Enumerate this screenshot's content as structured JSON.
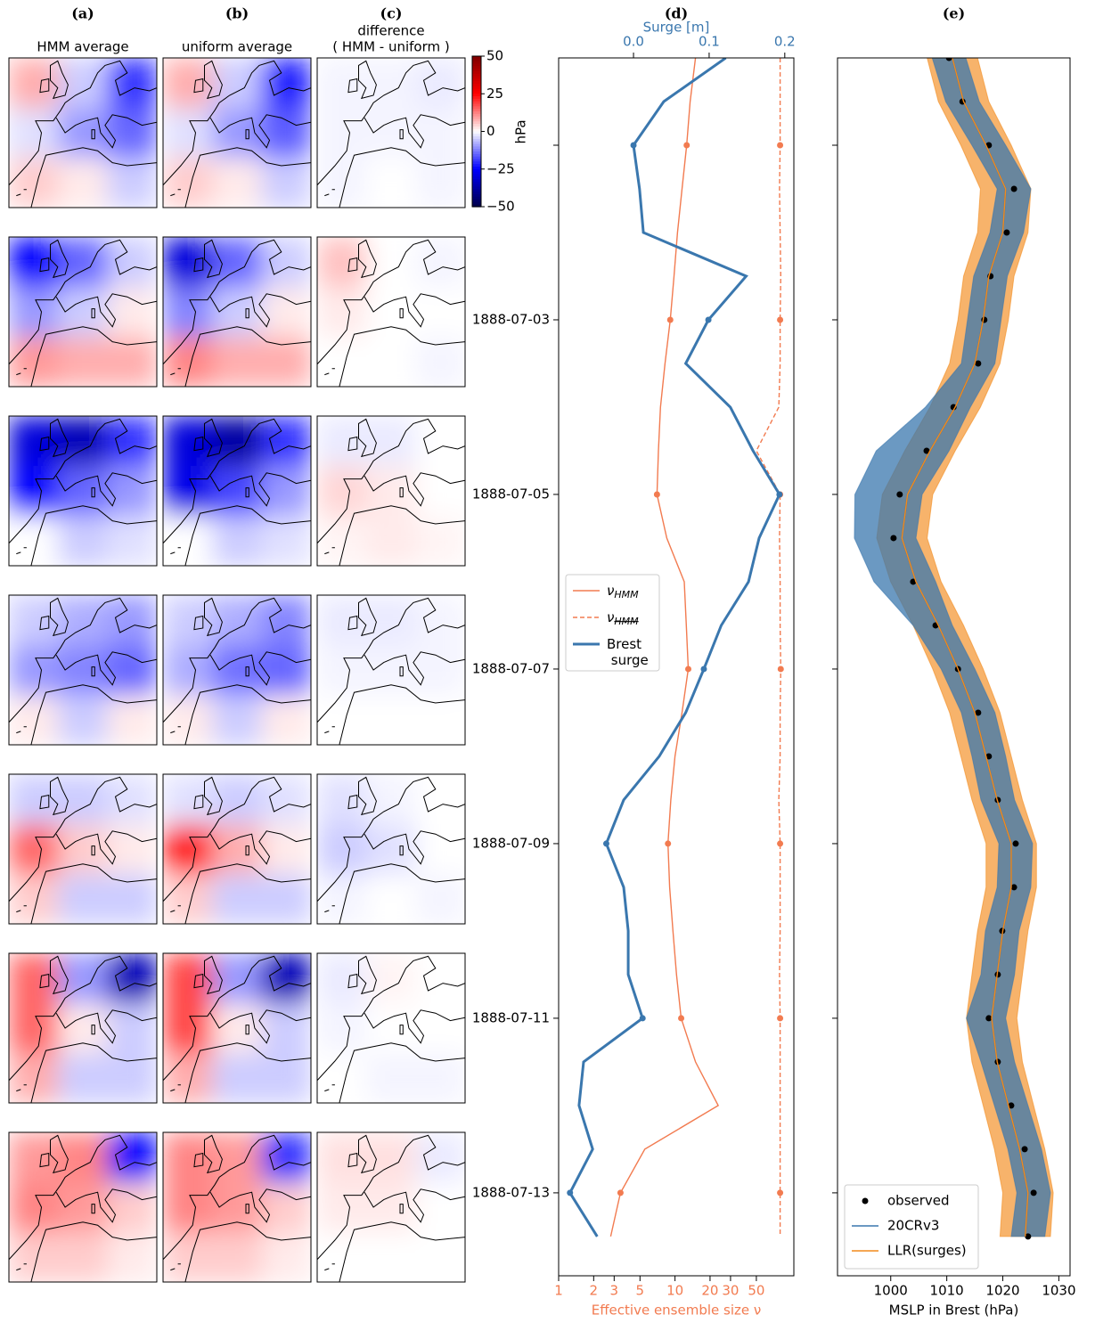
{
  "chart_data": [
    {
      "type": "map-grid",
      "panel_labels": [
        "(a)",
        "(b)",
        "(c)"
      ],
      "column_titles": [
        [
          "HMM average"
        ],
        [
          "uniform average"
        ],
        [
          "difference",
          "( HMM - uniform )"
        ]
      ],
      "colorbar": {
        "label": "hPa",
        "lim": [
          -50,
          50
        ],
        "ticks": [
          50,
          25,
          0,
          {
            "value": -25,
            "label": "−25"
          },
          {
            "value": -50,
            "label": "−50"
          }
        ]
      },
      "grids": [
        [
          [
            [
              8,
              -5,
              -20
            ],
            [
              -3,
              -10,
              -15
            ],
            [
              5,
              2,
              -5
            ]
          ],
          [
            [
              8,
              -5,
              -22
            ],
            [
              -3,
              -10,
              -16
            ],
            [
              5,
              2,
              -5
            ]
          ],
          [
            [
              -1,
              -1,
              -2
            ],
            [
              -1,
              -1,
              -1
            ],
            [
              -1,
              0,
              -1
            ]
          ]
        ],
        [
          [
            [
              -25,
              -15,
              -5
            ],
            [
              -10,
              -5,
              2
            ],
            [
              10,
              8,
              8
            ]
          ],
          [
            [
              -30,
              -15,
              -5
            ],
            [
              -12,
              -5,
              2
            ],
            [
              12,
              8,
              8
            ]
          ],
          [
            [
              6,
              0,
              -1
            ],
            [
              2,
              0,
              0
            ],
            [
              0,
              0,
              -1
            ]
          ]
        ],
        [
          [
            [
              -30,
              -35,
              -20
            ],
            [
              -25,
              -15,
              -10
            ],
            [
              0,
              -5,
              -3
            ]
          ],
          [
            [
              -30,
              -38,
              -20
            ],
            [
              -28,
              -18,
              -10
            ],
            [
              0,
              -5,
              -3
            ]
          ],
          [
            [
              -2,
              -2,
              0
            ],
            [
              4,
              2,
              0
            ],
            [
              1,
              2,
              1
            ]
          ]
        ],
        [
          [
            [
              -5,
              -8,
              -10
            ],
            [
              -10,
              -12,
              -15
            ],
            [
              2,
              -5,
              2
            ]
          ],
          [
            [
              -5,
              -8,
              -12
            ],
            [
              -8,
              -14,
              -15
            ],
            [
              2,
              -5,
              2
            ]
          ],
          [
            [
              -2,
              -2,
              -1
            ],
            [
              -1,
              -1,
              -1
            ],
            [
              0,
              0,
              0
            ]
          ]
        ],
        [
          [
            [
              -5,
              -5,
              -3
            ],
            [
              15,
              5,
              2
            ],
            [
              5,
              -5,
              -5
            ]
          ],
          [
            [
              -3,
              -5,
              -3
            ],
            [
              22,
              8,
              2
            ],
            [
              5,
              -5,
              -5
            ]
          ],
          [
            [
              -3,
              -1,
              0
            ],
            [
              -5,
              -3,
              0
            ],
            [
              -1,
              0,
              -1
            ]
          ]
        ],
        [
          [
            [
              15,
              -10,
              -35
            ],
            [
              15,
              2,
              -5
            ],
            [
              8,
              -5,
              -5
            ]
          ],
          [
            [
              18,
              -10,
              -35
            ],
            [
              18,
              2,
              -5
            ],
            [
              8,
              -5,
              -5
            ]
          ],
          [
            [
              -2,
              1,
              0
            ],
            [
              -1,
              0,
              0
            ],
            [
              0,
              -1,
              -1
            ]
          ]
        ],
        [
          [
            [
              10,
              12,
              -25
            ],
            [
              12,
              10,
              5
            ],
            [
              5,
              5,
              2
            ]
          ],
          [
            [
              12,
              10,
              -20
            ],
            [
              12,
              10,
              5
            ],
            [
              5,
              5,
              2
            ]
          ],
          [
            [
              3,
              3,
              -2
            ],
            [
              2,
              2,
              0
            ],
            [
              0,
              0,
              0
            ]
          ]
        ]
      ]
    },
    {
      "type": "profile",
      "panel_label": "(d)",
      "xlabel": "Effective ensemble size ν",
      "xscale": "log",
      "xlim": [
        1,
        105
      ],
      "xticks": [
        1,
        2,
        3,
        5,
        10,
        20,
        30,
        50
      ],
      "x2label": "Surge [m]",
      "x2lim": [
        -0.099,
        0.212
      ],
      "x2ticks": [
        {
          "value": 0,
          "label": "0.0"
        },
        0.1,
        0.2
      ],
      "ylim": [
        -1,
        12.95
      ],
      "yticks": [
        {
          "value": 0,
          "label": null
        },
        {
          "value": 2,
          "label": "1888-07-03"
        },
        {
          "value": 4,
          "label": "1888-07-05"
        },
        {
          "value": 6,
          "label": "1888-07-07"
        },
        {
          "value": 8,
          "label": "1888-07-09"
        },
        {
          "value": 10,
          "label": "1888-07-11"
        },
        {
          "value": 12,
          "label": "1888-07-13"
        }
      ],
      "y": [
        -1,
        -0.5,
        0,
        0.5,
        1,
        1.5,
        2,
        2.5,
        3,
        3.5,
        4,
        4.5,
        5,
        5.5,
        6,
        6.5,
        7,
        7.5,
        8,
        8.5,
        9,
        9.5,
        10,
        10.5,
        11,
        11.5,
        12,
        12.5
      ],
      "legend": "center left",
      "series": [
        {
          "name": "νHMM",
          "color": "#f27b50",
          "style": "solid",
          "strikethrough": false,
          "values": [
            15,
            13.5,
            12.6,
            11.5,
            10.5,
            9.8,
            9.1,
            8.2,
            7.5,
            7.2,
            7.0,
            8.5,
            12,
            12.5,
            13,
            11.5,
            10,
            9.2,
            8.7,
            9.0,
            9.6,
            10.3,
            11.3,
            15,
            23.5,
            5.5,
            3.4,
            2.8
          ]
        },
        {
          "name": "νHMM",
          "color": "#f27b50",
          "style": "dashed",
          "strikethrough": true,
          "values": [
            80,
            80,
            80,
            79,
            80,
            81,
            80,
            80,
            78,
            50,
            80,
            79,
            80,
            80,
            81,
            80,
            80,
            78,
            80,
            80,
            80,
            79,
            80,
            80,
            80,
            80,
            80,
            80
          ]
        },
        {
          "name": "Brest surge",
          "color": "#3a77ae",
          "style": "thick",
          "axis": "x2",
          "values": [
            0.122,
            0.04,
            0.0,
            0.008,
            0.013,
            0.149,
            0.099,
            0.069,
            0.128,
            0.158,
            0.193,
            0.166,
            0.152,
            0.116,
            0.093,
            0.069,
            0.034,
            -0.013,
            -0.036,
            -0.013,
            -0.007,
            -0.007,
            0.012,
            -0.066,
            -0.072,
            -0.054,
            -0.084,
            -0.048
          ]
        }
      ]
    },
    {
      "type": "ensemble",
      "panel_label": "(e)",
      "xlabel": "MSLP in Brest (hPa)",
      "xlim": [
        990.5,
        1032
      ],
      "xticks": [
        1000,
        1010,
        1020,
        1030
      ],
      "ylim": [
        -1,
        12.95
      ],
      "yticks": [
        0,
        2,
        4,
        6,
        8,
        10,
        12
      ],
      "y": [
        -1,
        -0.5,
        0,
        0.5,
        1,
        1.5,
        2,
        2.5,
        3,
        3.5,
        4,
        4.5,
        5,
        5.5,
        6,
        6.5,
        7,
        7.5,
        8,
        8.5,
        9,
        9.5,
        10,
        10.5,
        11,
        11.5,
        12,
        12.5
      ],
      "legend": "lower left",
      "series": [
        {
          "name": "observed",
          "kind": "scatter",
          "color": "#000000",
          "values": [
            1010.4,
            1012.8,
            1017.5,
            1022,
            1020.7,
            1017.8,
            1016.7,
            1015.6,
            1011.2,
            1006.4,
            1001.6,
            1000.5,
            1004,
            1008,
            1012,
            1015.6,
            1017.5,
            1019.1,
            1022.3,
            1022,
            1019.9,
            1019.1,
            1017.5,
            1019.1,
            1021.5,
            1023.9,
            1025.5,
            1024.5
          ]
        },
        {
          "name": "20CRv3",
          "kind": "band",
          "color": "#3a77ae",
          "lower": [
            1007.4,
            1009.8,
            1014.5,
            1019,
            1017.7,
            1014.8,
            1013.7,
            1012.6,
            1006.2,
            997.4,
            993.6,
            993.5,
            997,
            1004,
            1009,
            1012.6,
            1014.5,
            1016.1,
            1019.3,
            1019,
            1016.9,
            1016.1,
            1013.5,
            1016.1,
            1018.5,
            1020.9,
            1022.5,
            1021.5
          ],
          "upper": [
            1013.4,
            1015.8,
            1020.5,
            1025,
            1023.7,
            1020.8,
            1019.7,
            1018.6,
            1014.2,
            1010.4,
            1005.6,
            1004.5,
            1008,
            1011,
            1015,
            1018.6,
            1020.5,
            1022.1,
            1025.3,
            1025,
            1022.9,
            1022.1,
            1020.5,
            1022.1,
            1024.5,
            1026.9,
            1028.5,
            1027.5
          ]
        },
        {
          "name": "LLR(surges)",
          "kind": "band-line",
          "color": "#f28a1c",
          "values": [
            1011,
            1013,
            1017,
            1020.5,
            1020,
            1017.5,
            1016.5,
            1015,
            1011.5,
            1007,
            1003,
            1002,
            1004.5,
            1008.5,
            1012,
            1015,
            1017,
            1019,
            1021.5,
            1021.5,
            1020,
            1019,
            1018,
            1019,
            1021,
            1023,
            1024.5,
            1024
          ],
          "lower": [
            1006.5,
            1008.5,
            1012.5,
            1016,
            1015.5,
            1013,
            1012,
            1010.5,
            1007,
            1002.5,
            998.5,
            997.5,
            1000,
            1004,
            1007.5,
            1010.5,
            1012.5,
            1014.5,
            1017,
            1017,
            1015.5,
            1014.5,
            1013.5,
            1014.5,
            1016.5,
            1018.5,
            1020,
            1019.5
          ],
          "upper": [
            1015.5,
            1017.5,
            1021.5,
            1025,
            1024.5,
            1022,
            1021,
            1019.5,
            1016,
            1011.5,
            1007.5,
            1006.5,
            1009,
            1013,
            1016.5,
            1019.5,
            1021.5,
            1023.5,
            1026,
            1026,
            1024.5,
            1023.5,
            1022.5,
            1023.5,
            1025.5,
            1027.5,
            1029,
            1028.5
          ]
        }
      ]
    }
  ]
}
